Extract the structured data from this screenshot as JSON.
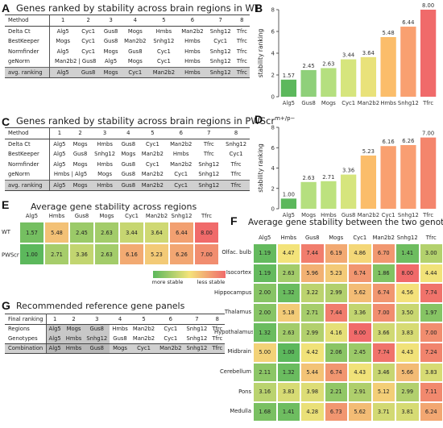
{
  "panelA": {
    "letter": "A",
    "title": "Genes ranked by stability across brain regions in WT",
    "header": [
      "Method",
      "1",
      "2",
      "3",
      "4",
      "5",
      "6",
      "7",
      "8"
    ],
    "rows": [
      [
        "Delta Ct",
        "Alg5",
        "Cyc1",
        "Gus8",
        "Mogs",
        "Hmbs",
        "Man2b2",
        "Snhg12",
        "Tfrc"
      ],
      [
        "BestKeeper",
        "Mogs",
        "Cyc1",
        "Gus8",
        "Man2b2",
        "Snhg12",
        "Hmbs",
        "Cyc1",
        "Tfrc"
      ],
      [
        "Normfinder",
        "Alg5",
        "Cyc1",
        "Mogs",
        "Gus8",
        "Cyc1",
        "Hmbs",
        "Snhg12",
        "Tfrc"
      ],
      [
        "geNorm",
        "Man2b2 | Gus8",
        "",
        "Alg5",
        "Mogs",
        "Cyc1",
        "Hmbs",
        "Snhg12",
        "Tfrc"
      ]
    ],
    "avg": [
      "avg. ranking",
      "Alg5",
      "Gus8",
      "Mogs",
      "Cyc1",
      "Man2b2",
      "Hmbs",
      "Snhg12",
      "Tfrc"
    ]
  },
  "panelC": {
    "letter": "C",
    "title": "Genes ranked by stability across brain regions in PWScr",
    "title_sup": "m+/p−",
    "header": [
      "Method",
      "1",
      "2",
      "3",
      "4",
      "5",
      "6",
      "7",
      "8"
    ],
    "rows": [
      [
        "Delta Ct",
        "Alg5",
        "Mogs",
        "Hmbs",
        "Gus8",
        "Cyc1",
        "Man2b2",
        "Tfrc",
        "Snhg12"
      ],
      [
        "BestKeeper",
        "Alg5",
        "Gus8",
        "Snhg12",
        "Mogs",
        "Man2b2",
        "Hmbs",
        "Tfrc",
        "Cyc1"
      ],
      [
        "Normfinder",
        "Alg5",
        "Mogs",
        "Hmbs",
        "Gus8",
        "Cyc1",
        "Man2b2",
        "Snhg12",
        "Tfrc"
      ],
      [
        "geNorm",
        "Hmbs | Alg5",
        "",
        "Mogs",
        "Gus8",
        "Man2b2",
        "Cyc1",
        "Snhg12",
        "Tfrc"
      ]
    ],
    "avg": [
      "avg. ranking",
      "Alg5",
      "Mogs",
      "Hmbs",
      "Gus8",
      "Man2b2",
      "Cyc1",
      "Snhg12",
      "Tfrc"
    ]
  },
  "panelB": {
    "letter": "B"
  },
  "panelD": {
    "letter": "D"
  },
  "chart_data": [
    {
      "type": "bar",
      "ylabel": "stability ranking",
      "ylim": [
        0,
        8
      ],
      "yticks": [
        "0",
        "2",
        "4",
        "6",
        "8"
      ],
      "categories": [
        "Alg5",
        "Gus8",
        "Mogs",
        "Cyc1",
        "Man2b2",
        "Hmbs",
        "Snhg12",
        "Tfrc"
      ],
      "values": [
        1.57,
        2.45,
        2.63,
        3.44,
        3.64,
        5.48,
        6.44,
        8.0
      ],
      "value_labels": [
        "1.57",
        "2.45",
        "2.63",
        "3.44",
        "3.64",
        "5.48",
        "6.44",
        "8.00"
      ],
      "colors": [
        "#5cb85c",
        "#8fd07a",
        "#b5df7f",
        "#d6e57d",
        "#e9e27a",
        "#fbbd6a",
        "#f9a070",
        "#f06a6a"
      ]
    },
    {
      "type": "bar",
      "ylabel": "stability ranking",
      "ylim": [
        0,
        8
      ],
      "yticks": [
        "0",
        "2",
        "4",
        "6",
        "8"
      ],
      "categories": [
        "Alg5",
        "Mogs",
        "Hmbs",
        "Gus8",
        "Man2b2",
        "Cyc1",
        "Snhg12",
        "Tfrc"
      ],
      "values": [
        1.0,
        2.63,
        2.71,
        3.36,
        5.23,
        6.16,
        6.26,
        7.0
      ],
      "value_labels": [
        "1.00",
        "2.63",
        "2.71",
        "3.36",
        "5.23",
        "6.16",
        "6.26",
        "7.00"
      ],
      "colors": [
        "#5cb85c",
        "#b5df7f",
        "#bde27e",
        "#d6e57d",
        "#fbbd6a",
        "#f9a070",
        "#f99e72",
        "#f4856c"
      ]
    },
    {
      "type": "heatmap",
      "title": "Average gene stability across regions",
      "columns": [
        "Alg5",
        "Hmbs",
        "Gus8",
        "Mogs",
        "Cyc1",
        "Man2b2",
        "Snhg12",
        "Tfrc"
      ],
      "rows": [
        "WT",
        "PWScr"
      ],
      "row_sup": [
        "",
        "m+/p−"
      ],
      "values": [
        [
          1.57,
          5.48,
          2.45,
          2.63,
          3.44,
          3.64,
          6.44,
          8.0
        ],
        [
          1.0,
          2.71,
          3.36,
          2.63,
          6.16,
          5.23,
          6.26,
          7.0
        ]
      ],
      "labels": [
        [
          "1.57",
          "5.48",
          "2.45",
          "2.63",
          "3.44",
          "3.64",
          "6.44",
          "8.00"
        ],
        [
          "1.00",
          "2.71",
          "3.36",
          "2.63",
          "6.16",
          "5.23",
          "6.26",
          "7.00"
        ]
      ],
      "legend_low": "more stable",
      "legend_high": "less stable"
    },
    {
      "type": "heatmap",
      "title": "Average gene stability between the two genotypes",
      "columns": [
        "Alg5",
        "Hmbs",
        "Gus8",
        "Mogs",
        "Cyc1",
        "Man2b2",
        "Snhg12",
        "Tfrc"
      ],
      "rows": [
        "Olfac. bulb",
        "Isocortex",
        "Hippocampus",
        "Thalamus",
        "Hypothalamus",
        "Midbrain",
        "Cerebellum",
        "Pons",
        "Medulla"
      ],
      "values": [
        [
          1.19,
          4.47,
          7.44,
          6.19,
          4.86,
          6.7,
          1.41,
          3.0
        ],
        [
          1.19,
          2.63,
          5.96,
          5.23,
          6.74,
          1.86,
          8.0,
          4.44
        ],
        [
          2.0,
          1.32,
          3.22,
          2.99,
          5.62,
          6.74,
          4.56,
          7.74
        ],
        [
          2.0,
          5.18,
          2.71,
          7.44,
          3.36,
          7.0,
          3.5,
          1.97
        ],
        [
          1.32,
          2.63,
          2.99,
          4.16,
          8.0,
          3.66,
          3.83,
          7.0
        ],
        [
          5.0,
          1.0,
          4.42,
          2.06,
          2.45,
          7.74,
          4.43,
          7.24
        ],
        [
          2.11,
          1.32,
          5.44,
          6.74,
          4.43,
          3.46,
          5.66,
          3.83
        ],
        [
          3.16,
          3.83,
          3.98,
          2.21,
          2.91,
          5.12,
          2.99,
          7.11
        ],
        [
          1.68,
          1.41,
          4.28,
          6.73,
          5.62,
          3.71,
          3.81,
          6.24
        ]
      ],
      "labels": [
        [
          "1.19",
          "4.47",
          "7.44",
          "6.19",
          "4.86",
          "6.70",
          "1.41",
          "3.00"
        ],
        [
          "1.19",
          "2.63",
          "5.96",
          "5.23",
          "6.74",
          "1.86",
          "8.00",
          "4.44"
        ],
        [
          "2.00",
          "1.32",
          "3.22",
          "2.99",
          "5.62",
          "6.74",
          "4.56",
          "7.74"
        ],
        [
          "2.00",
          "5.18",
          "2.71",
          "7.44",
          "3.36",
          "7.00",
          "3.50",
          "1.97"
        ],
        [
          "1.32",
          "2.63",
          "2.99",
          "4.16",
          "8.00",
          "3.66",
          "3.83",
          "7.00"
        ],
        [
          "5.00",
          "1.00",
          "4.42",
          "2.06",
          "2.45",
          "7.74",
          "4.43",
          "7.24"
        ],
        [
          "2.11",
          "1.32",
          "5.44",
          "6.74",
          "4.43",
          "3.46",
          "5.66",
          "3.83"
        ],
        [
          "3.16",
          "3.83",
          "3.98",
          "2.21",
          "2.91",
          "5.12",
          "2.99",
          "7.11"
        ],
        [
          "1.68",
          "1.41",
          "4.28",
          "6.73",
          "5.62",
          "3.71",
          "3.81",
          "6.24"
        ]
      ]
    }
  ],
  "panelE": {
    "letter": "E"
  },
  "panelF": {
    "letter": "F"
  },
  "panelG": {
    "letter": "G",
    "title": "Recommended reference gene panels",
    "header": [
      "Final ranking",
      "1",
      "2",
      "3",
      "4",
      "5",
      "6",
      "7",
      "8"
    ],
    "rows": [
      [
        "Regions",
        "Alg5",
        "Mogs",
        "Gus8",
        "Hmbs",
        "Man2b2",
        "Cyc1",
        "Snhg12",
        "Tfrc"
      ],
      [
        "Genotypes",
        "Alg5",
        "Hmbs",
        "Snhg12",
        "Gus8",
        "Man2b2",
        "Cyc1",
        "Snhg12",
        "Tfrc"
      ],
      [
        "Combination",
        "Alg5",
        "Hmbs",
        "Gus8",
        "Mogs",
        "Cyc1",
        "Man2b2",
        "Snhg12",
        "Tfrc"
      ]
    ]
  },
  "colors": {
    "low": "#5cb85c",
    "mid": "#f4e37a",
    "high": "#f06a6a"
  }
}
